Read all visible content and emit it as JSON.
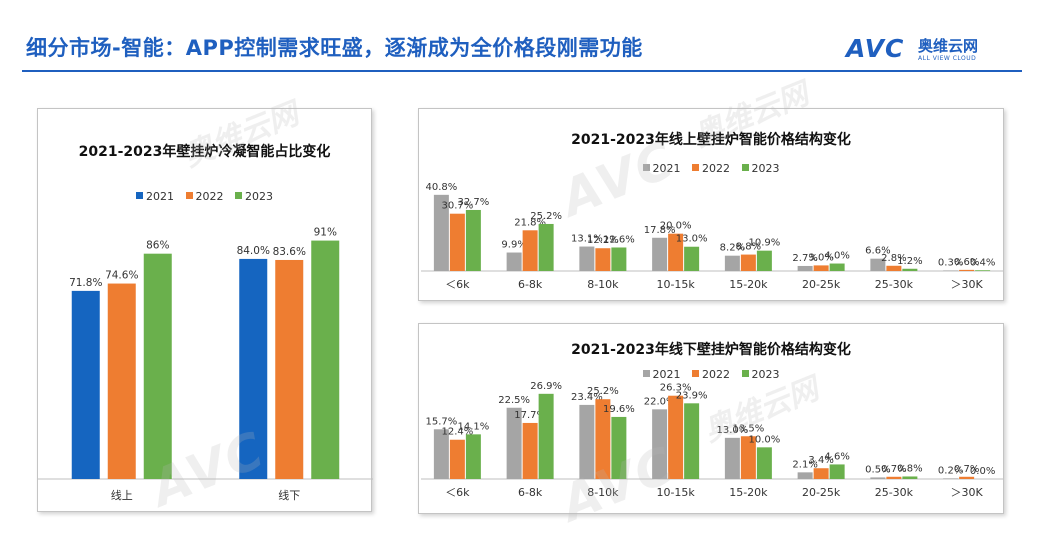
{
  "page": {
    "title": "细分市场-智能：APP控制需求旺盛，逐渐成为全价格段刚需功能"
  },
  "logo": {
    "mark": "AVC",
    "name_cn": "奥维云网",
    "name_en": "ALL VIEW CLOUD"
  },
  "colors": {
    "title_blue": "#1f5fbf",
    "series_2021_blue": "#1565c0",
    "series_2022_orange": "#ee7d31",
    "series_2023_green": "#6ab04c",
    "series_2021_gray": "#a5a5a5"
  },
  "chart_data": [
    {
      "type": "bar",
      "title": "2021-2023年壁挂炉冷凝智能占比变化",
      "categories": [
        "线上",
        "线下"
      ],
      "series": [
        {
          "name": "2021",
          "values": [
            71.8,
            84.0
          ],
          "labels": [
            "71.8%",
            "84.0%"
          ]
        },
        {
          "name": "2022",
          "values": [
            74.6,
            83.6
          ],
          "labels": [
            "74.6%",
            "83.6%"
          ]
        },
        {
          "name": "2023",
          "values": [
            86,
            91
          ],
          "labels": [
            "86%",
            "91%"
          ]
        }
      ],
      "ylim": [
        0,
        100
      ],
      "legend": "top",
      "grid": false
    },
    {
      "type": "bar",
      "title": "2021-2023年线上壁挂炉智能价格结构变化",
      "categories": [
        "＜6k",
        "6-8k",
        "8-10k",
        "10-15k",
        "15-20k",
        "20-25k",
        "25-30k",
        "＞30K"
      ],
      "series": [
        {
          "name": "2021",
          "values": [
            40.8,
            9.9,
            13.1,
            17.8,
            8.2,
            2.7,
            6.6,
            0.3
          ]
        },
        {
          "name": "2022",
          "values": [
            30.7,
            21.8,
            12.2,
            20.0,
            8.8,
            3.0,
            2.8,
            0.6
          ]
        },
        {
          "name": "2023",
          "values": [
            32.7,
            25.2,
            12.6,
            13.0,
            10.9,
            4.0,
            1.2,
            0.4
          ]
        }
      ],
      "ylim": [
        0,
        45
      ],
      "legend": "top",
      "grid": false
    },
    {
      "type": "bar",
      "title": "2021-2023年线下壁挂炉智能价格结构变化",
      "categories": [
        "＜6k",
        "6-8k",
        "8-10k",
        "10-15k",
        "15-20k",
        "20-25k",
        "25-30k",
        "＞30K"
      ],
      "series": [
        {
          "name": "2021",
          "values": [
            15.7,
            22.5,
            23.4,
            22.0,
            13.0,
            2.1,
            0.5,
            0.2
          ]
        },
        {
          "name": "2022",
          "values": [
            12.4,
            17.7,
            25.2,
            26.3,
            13.5,
            3.4,
            0.7,
            0.7
          ]
        },
        {
          "name": "2023",
          "values": [
            14.1,
            26.9,
            19.6,
            23.9,
            10.0,
            4.6,
            0.8,
            0.0
          ]
        }
      ],
      "ylim": [
        0,
        30
      ],
      "legend": "top",
      "grid": false
    }
  ]
}
